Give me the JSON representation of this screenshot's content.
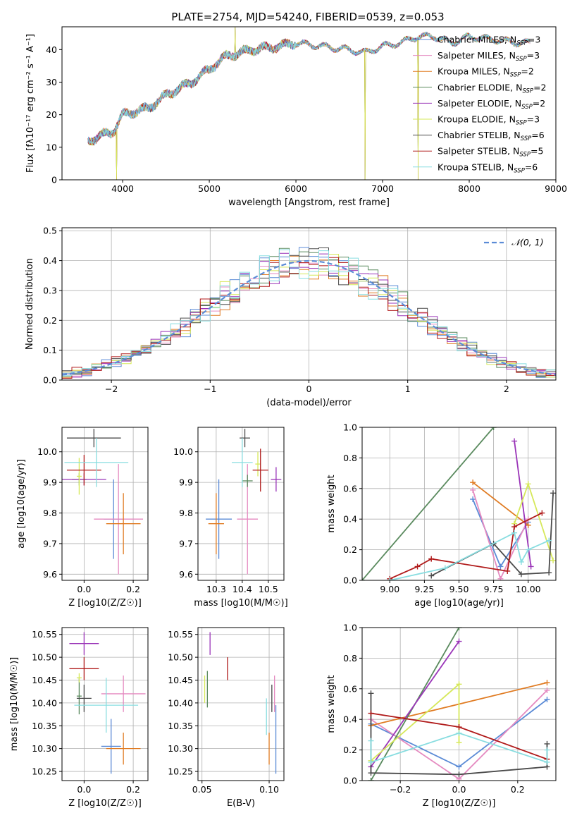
{
  "figure": {
    "title": "PLATE=2754, MJD=54240, FIBERID=0539, z=0.053"
  },
  "models": [
    {
      "label": "Chabrier MILES, N",
      "sub": "SSP",
      "tail": "=3",
      "color": "#5b8bd6"
    },
    {
      "label": "Salpeter MILES, N",
      "sub": "SSP",
      "tail": "=3",
      "color": "#e58ac0"
    },
    {
      "label": "Kroupa MILES, N",
      "sub": "SSP",
      "tail": "=2",
      "color": "#e07b22"
    },
    {
      "label": "Chabrier ELODIE, N",
      "sub": "SSP",
      "tail": "=2",
      "color": "#5a8a5e"
    },
    {
      "label": "Salpeter ELODIE, N",
      "sub": "SSP",
      "tail": "=2",
      "color": "#9a34b8"
    },
    {
      "label": "Kroupa ELODIE, N",
      "sub": "SSP",
      "tail": "=3",
      "color": "#d6e85a"
    },
    {
      "label": "Chabrier STELIB, N",
      "sub": "SSP",
      "tail": "=6",
      "color": "#4a4a4a"
    },
    {
      "label": "Salpeter STELIB, N",
      "sub": "SSP",
      "tail": "=5",
      "color": "#b01a1a"
    },
    {
      "label": "Kroupa STELIB, N",
      "sub": "SSP",
      "tail": "=6",
      "color": "#88dde0"
    }
  ],
  "chart_data": [
    {
      "id": "spectrum",
      "type": "line",
      "xlabel": "wavelength [Angstrom, rest frame]",
      "ylabel": "Flux [f",
      "ylabel_full": "Flux [fλ10⁻¹⁷ erg cm⁻² s⁻¹ A⁻¹]",
      "xlim": [
        3300,
        9000
      ],
      "ylim": [
        0,
        47
      ],
      "xticks": [
        4000,
        5000,
        6000,
        7000,
        8000,
        9000
      ],
      "yticks": [
        0,
        10,
        20,
        30,
        40
      ],
      "anchors_x": [
        3600,
        3700,
        3900,
        4000,
        4300,
        4500,
        4800,
        5000,
        5200,
        5500,
        5800,
        6000,
        6300,
        6600,
        6800,
        7000,
        7200,
        7400,
        7600,
        7800,
        8000,
        8300,
        8600,
        8700
      ],
      "anchors_y": [
        12,
        13,
        15,
        20,
        22,
        26,
        30,
        34,
        38,
        40,
        41,
        42,
        41,
        40,
        39,
        41,
        42,
        44,
        44,
        42,
        44,
        43,
        42,
        42
      ],
      "spikes": [
        {
          "x": 3930,
          "y": 0
        },
        {
          "x": 5300,
          "y": 47
        },
        {
          "x": 6800,
          "y": 0
        },
        {
          "x": 7410,
          "y": 0
        }
      ]
    },
    {
      "id": "residual-hist",
      "type": "area",
      "xlabel": "(data-model)/error",
      "ylabel": "Normed distribution",
      "xlim": [
        -2.5,
        2.5
      ],
      "ylim": [
        0,
        0.51
      ],
      "xticks": [
        -2,
        -1,
        0,
        1,
        2
      ],
      "yticks": [
        0.0,
        0.1,
        0.2,
        0.3,
        0.4,
        0.5
      ],
      "legend": "N(0,1)",
      "legend_loc": "top-right",
      "bin_width": 0.1
    },
    {
      "id": "age-vs-Z",
      "type": "scatter",
      "xlabel": "Z [log10(Z/Z☉)]",
      "ylabel": "age  [log10(age/yr)]",
      "xlim": [
        -0.09,
        0.26
      ],
      "ylim": [
        9.58,
        10.08
      ],
      "xticks": [
        0.0,
        0.2
      ],
      "yticks": [
        9.6,
        9.7,
        9.8,
        9.9,
        10.0
      ],
      "points": [
        {
          "model": 0,
          "x": 0.12,
          "y": 9.78,
          "xerr": 0.04,
          "yerr": 0.13
        },
        {
          "model": 1,
          "x": 0.14,
          "y": 9.78,
          "xerr": 0.1,
          "yerr": 0.18
        },
        {
          "model": 2,
          "x": 0.16,
          "y": 9.765,
          "xerr": 0.07,
          "yerr": 0.1
        },
        {
          "model": 3,
          "x": -0.02,
          "y": 9.91,
          "xerr": 0.03,
          "yerr": 0.02
        },
        {
          "model": 4,
          "x": 0.0,
          "y": 9.91,
          "xerr": 0.09,
          "yerr": 0.02
        },
        {
          "model": 5,
          "x": -0.02,
          "y": 9.92,
          "xerr": 0.01,
          "yerr": 0.06
        },
        {
          "model": 6,
          "x": 0.04,
          "y": 10.045,
          "xerr": 0.11,
          "yerr": 0.03
        },
        {
          "model": 7,
          "x": 0.0,
          "y": 9.94,
          "xerr": 0.07,
          "yerr": 0.05
        },
        {
          "model": 8,
          "x": 0.05,
          "y": 9.965,
          "xerr": 0.13,
          "yerr": 0.08
        }
      ]
    },
    {
      "id": "age-vs-mass",
      "type": "scatter",
      "xlabel": "mass [log10(M/M☉)]",
      "ylabel": "",
      "xlim": [
        10.23,
        10.56
      ],
      "ylim": [
        9.58,
        10.08
      ],
      "xticks": [
        10.3,
        10.4,
        10.5
      ],
      "yticks": [
        9.6,
        9.7,
        9.8,
        9.9,
        10.0
      ],
      "points": [
        {
          "model": 0,
          "x": 10.31,
          "y": 9.78,
          "xerr": 0.05,
          "yerr": 0.13
        },
        {
          "model": 1,
          "x": 10.42,
          "y": 9.78,
          "xerr": 0.04,
          "yerr": 0.18
        },
        {
          "model": 2,
          "x": 10.3,
          "y": 9.765,
          "xerr": 0.03,
          "yerr": 0.1
        },
        {
          "model": 3,
          "x": 10.42,
          "y": 9.905,
          "xerr": 0.02,
          "yerr": 0.02
        },
        {
          "model": 4,
          "x": 10.53,
          "y": 9.91,
          "xerr": 0.02,
          "yerr": 0.04
        },
        {
          "model": 5,
          "x": 10.46,
          "y": 9.96,
          "xerr": 0.01,
          "yerr": 0.04
        },
        {
          "model": 6,
          "x": 10.41,
          "y": 10.045,
          "xerr": 0.02,
          "yerr": 0.03
        },
        {
          "model": 7,
          "x": 10.47,
          "y": 9.94,
          "xerr": 0.03,
          "yerr": 0.07
        },
        {
          "model": 8,
          "x": 10.4,
          "y": 9.965,
          "xerr": 0.04,
          "yerr": 0.08
        }
      ]
    },
    {
      "id": "massweight-vs-age",
      "type": "line",
      "xlabel": "age  [log10(age/yr)]",
      "ylabel": "mass weight",
      "xlim": [
        8.8,
        10.2
      ],
      "ylim": [
        0,
        1
      ],
      "xticks": [
        9.0,
        9.25,
        9.5,
        9.75,
        10.0
      ],
      "yticks": [
        0.0,
        0.2,
        0.4,
        0.6,
        0.8,
        1.0
      ],
      "series": [
        {
          "model": 0,
          "x": [
            9.6,
            9.8,
            10.0
          ],
          "y": [
            0.53,
            0.09,
            0.38
          ]
        },
        {
          "model": 1,
          "x": [
            9.6,
            9.8,
            10.0
          ],
          "y": [
            0.59,
            0.01,
            0.4
          ]
        },
        {
          "model": 2,
          "x": [
            9.6,
            10.0
          ],
          "y": [
            0.64,
            0.36
          ]
        },
        {
          "model": 3,
          "x": [
            8.8,
            9.75
          ],
          "y": [
            0.0,
            1.0
          ]
        },
        {
          "model": 4,
          "x": [
            9.9,
            10.02
          ],
          "y": [
            0.91,
            0.09
          ]
        },
        {
          "model": 5,
          "x": [
            9.9,
            10.0,
            10.18
          ],
          "y": [
            0.37,
            0.63,
            0.13
          ]
        },
        {
          "model": 6,
          "x": [
            9.3,
            9.75,
            9.95,
            10.15,
            10.18
          ],
          "y": [
            0.03,
            0.24,
            0.04,
            0.05,
            0.57
          ]
        },
        {
          "model": 7,
          "x": [
            9.0,
            9.2,
            9.3,
            9.85,
            9.9,
            10.1
          ],
          "y": [
            0.01,
            0.09,
            0.14,
            0.06,
            0.35,
            0.44
          ]
        },
        {
          "model": 8,
          "x": [
            9.0,
            9.4,
            9.9,
            9.95,
            10.0,
            10.15
          ],
          "y": [
            0.0,
            0.08,
            0.31,
            0.12,
            0.2,
            0.26
          ]
        }
      ]
    },
    {
      "id": "mass-vs-Z",
      "type": "scatter",
      "xlabel": "Z [log10(Z/Z☉)]",
      "ylabel": "mass [log10(M/M☉)]",
      "xlim": [
        -0.09,
        0.26
      ],
      "ylim": [
        10.23,
        10.565
      ],
      "xticks": [
        0.0,
        0.2
      ],
      "yticks": [
        10.25,
        10.3,
        10.35,
        10.4,
        10.45,
        10.5,
        10.55
      ],
      "points": [
        {
          "model": 0,
          "x": 0.11,
          "y": 10.305,
          "xerr": 0.04,
          "yerr": 0.06
        },
        {
          "model": 1,
          "x": 0.16,
          "y": 10.42,
          "xerr": 0.09,
          "yerr": 0.04
        },
        {
          "model": 2,
          "x": 0.16,
          "y": 10.3,
          "xerr": 0.07,
          "yerr": 0.035
        },
        {
          "model": 3,
          "x": -0.02,
          "y": 10.415,
          "xerr": 0.01,
          "yerr": 0.04
        },
        {
          "model": 4,
          "x": 0.0,
          "y": 10.53,
          "xerr": 0.06,
          "yerr": 0.025
        },
        {
          "model": 5,
          "x": -0.02,
          "y": 10.455,
          "xerr": 0.01,
          "yerr": 0.01
        },
        {
          "model": 6,
          "x": 0.0,
          "y": 10.41,
          "xerr": 0.03,
          "yerr": 0.03
        },
        {
          "model": 7,
          "x": 0.0,
          "y": 10.475,
          "xerr": 0.06,
          "yerr": 0.025
        },
        {
          "model": 8,
          "x": 0.09,
          "y": 10.395,
          "xerr": 0.13,
          "yerr": 0.06
        }
      ]
    },
    {
      "id": "mass-vs-EBV",
      "type": "scatter",
      "xlabel": "E(B-V)",
      "ylabel": "",
      "xlim": [
        0.047,
        0.111
      ],
      "ylim": [
        10.23,
        10.565
      ],
      "xticks": [
        0.05,
        0.1
      ],
      "yticks": [
        10.25,
        10.3,
        10.35,
        10.4,
        10.45,
        10.5,
        10.55
      ],
      "points": [
        {
          "model": 0,
          "x": 0.105,
          "y": 10.32,
          "xerr": 0,
          "yerr": 0.075
        },
        {
          "model": 1,
          "x": 0.104,
          "y": 10.42,
          "xerr": 0,
          "yerr": 0.04
        },
        {
          "model": 2,
          "x": 0.1,
          "y": 10.3,
          "xerr": 0,
          "yerr": 0.035
        },
        {
          "model": 3,
          "x": 0.054,
          "y": 10.43,
          "xerr": 0,
          "yerr": 0.04
        },
        {
          "model": 4,
          "x": 0.056,
          "y": 10.53,
          "xerr": 0,
          "yerr": 0.025
        },
        {
          "model": 5,
          "x": 0.052,
          "y": 10.43,
          "xerr": 0,
          "yerr": 0.03
        },
        {
          "model": 6,
          "x": 0.102,
          "y": 10.41,
          "xerr": 0,
          "yerr": 0.03
        },
        {
          "model": 7,
          "x": 0.069,
          "y": 10.475,
          "xerr": 0,
          "yerr": 0.025
        },
        {
          "model": 8,
          "x": 0.098,
          "y": 10.37,
          "xerr": 0,
          "yerr": 0.04
        }
      ]
    },
    {
      "id": "massweight-vs-Z",
      "type": "line",
      "xlabel": "Z [log10(Z/Z☉)]",
      "ylabel": "mass weight",
      "xlim": [
        -0.33,
        0.33
      ],
      "ylim": [
        0,
        1
      ],
      "xticks": [
        -0.2,
        0.0,
        0.2
      ],
      "yticks": [
        0.0,
        0.2,
        0.4,
        0.6,
        0.8,
        1.0
      ],
      "series": [
        {
          "model": 0,
          "x": [
            -0.3,
            0.0,
            0.3
          ],
          "y": [
            0.37,
            0.09,
            0.53
          ]
        },
        {
          "model": 1,
          "x": [
            -0.3,
            0.0,
            0.3
          ],
          "y": [
            0.4,
            0.01,
            0.59
          ]
        },
        {
          "model": 2,
          "x": [
            -0.3,
            0.3
          ],
          "y": [
            0.36,
            0.64
          ]
        },
        {
          "model": 3,
          "x": [
            -0.3,
            0.0
          ],
          "y": [
            0.0,
            1.0
          ]
        },
        {
          "model": 4,
          "x": [
            -0.3,
            0.0
          ],
          "y": [
            0.09,
            0.91
          ]
        },
        {
          "model": 5,
          "x": [
            -0.3,
            0.0,
            0.0
          ],
          "y": [
            0.13,
            0.63,
            0.25
          ]
        },
        {
          "model": 6,
          "x": [
            -0.3,
            -0.3,
            0.0,
            0.3,
            0.3
          ],
          "y": [
            0.57,
            0.05,
            0.04,
            0.09,
            0.24
          ]
        },
        {
          "model": 7,
          "x": [
            -0.3,
            0.0,
            0.3
          ],
          "y": [
            0.44,
            0.35,
            0.14
          ]
        },
        {
          "model": 8,
          "x": [
            -0.3,
            -0.3,
            0.0,
            0.3,
            0.3
          ],
          "y": [
            0.26,
            0.12,
            0.31,
            0.12,
            0.2
          ]
        }
      ]
    }
  ]
}
